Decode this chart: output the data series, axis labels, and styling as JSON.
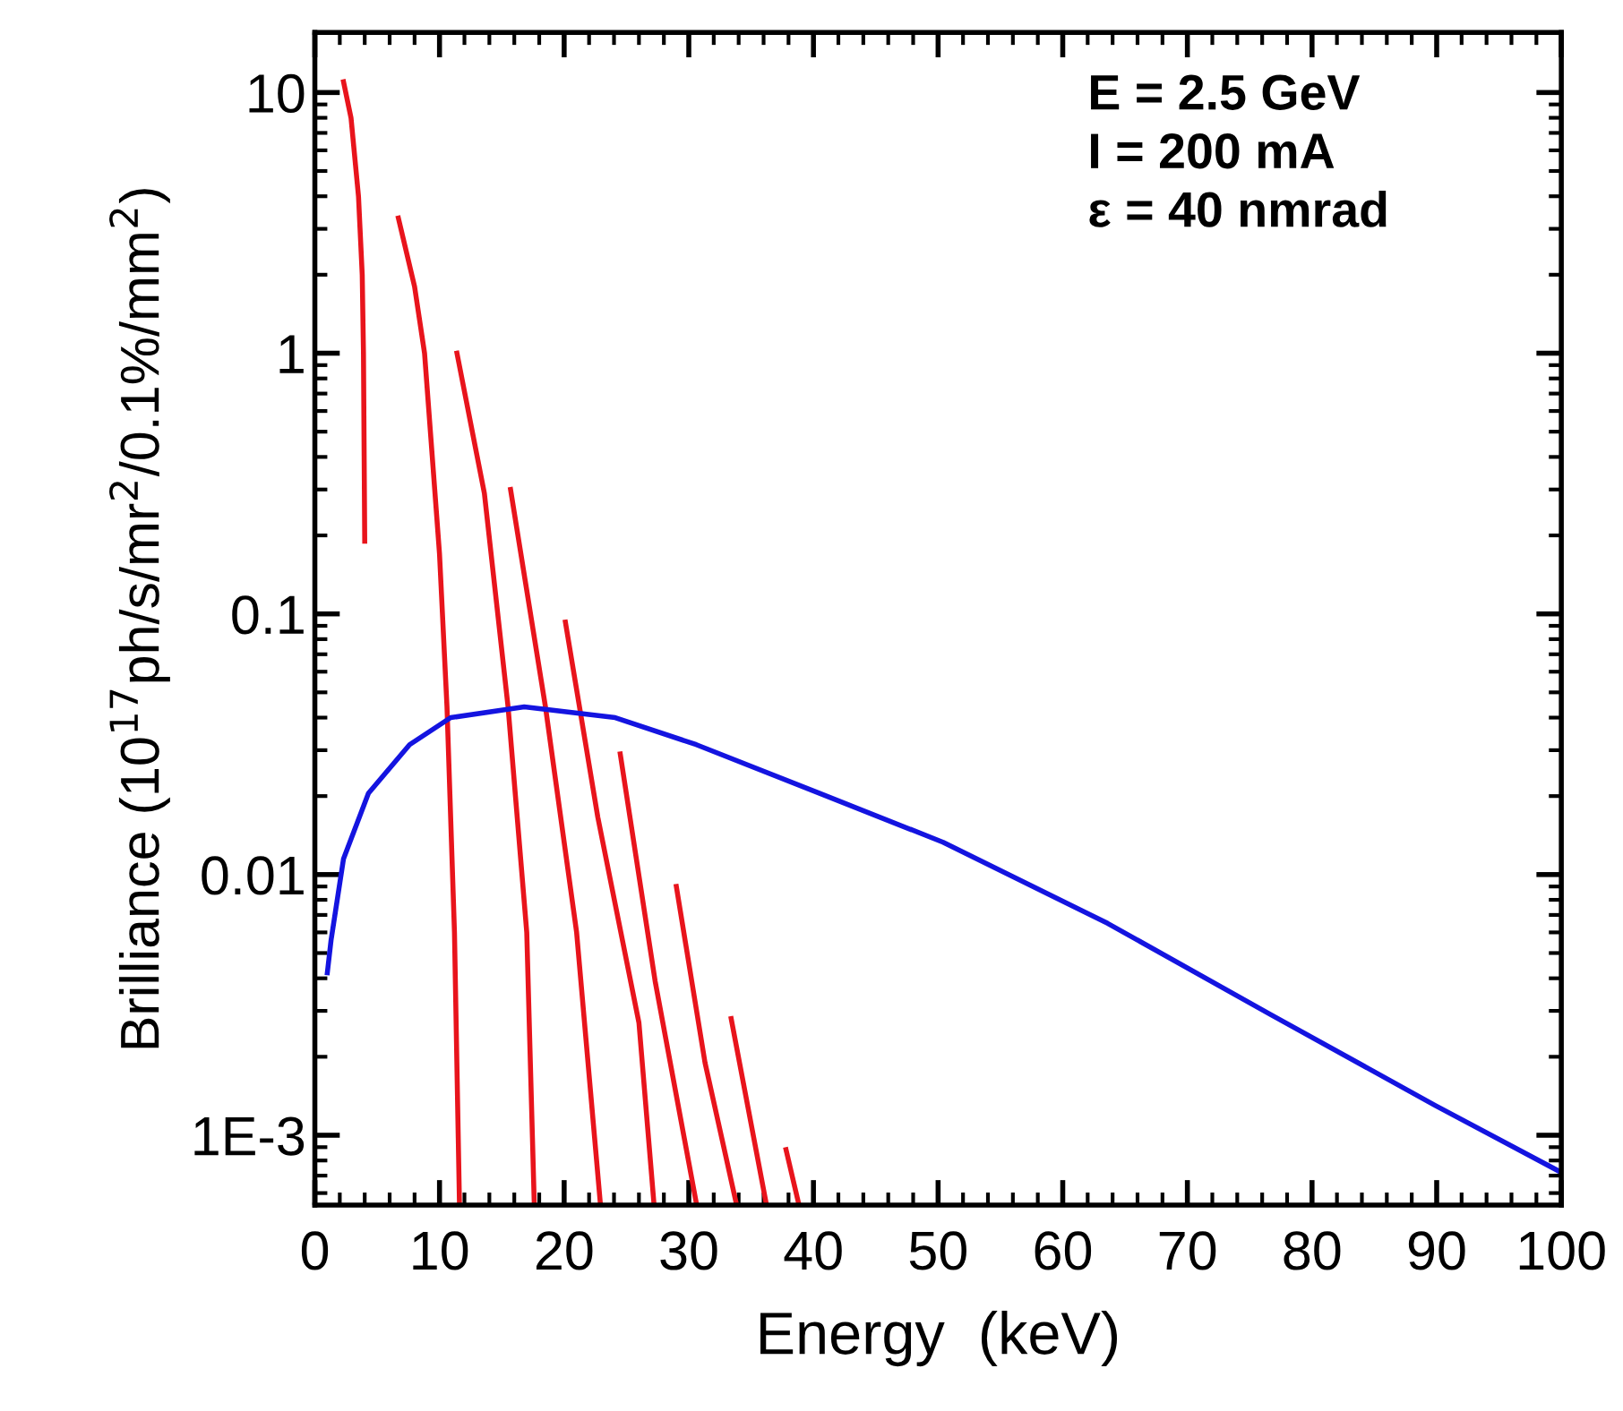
{
  "chart_data": {
    "type": "line",
    "xlabel": "Energy  (keV)",
    "ylabel": "Brilliance (10$^{17}$ph/s/mr$^{2}$/0.1%/mm$^{2}$)",
    "log": "y",
    "xlim": [
      0,
      100
    ],
    "ylim": [
      0.00054,
      17
    ],
    "xticks": [
      0,
      10,
      20,
      30,
      40,
      50,
      60,
      70,
      80,
      90,
      100
    ],
    "yticks": [
      {
        "value": 0.001,
        "label": "1E-3"
      },
      0.01,
      0.1,
      1,
      10
    ],
    "grid": false,
    "legend": false,
    "marker": "none",
    "line_style": "solid",
    "annotations": [
      "E = 2.5 GeV",
      "I = 200 mA",
      "ε = 40 nmrad"
    ],
    "series": [
      {
        "color": "#e8141c",
        "x": [
          2.3,
          2.9,
          3.5,
          3.8,
          3.9,
          4.0
        ],
        "values": [
          11,
          8,
          4,
          2,
          1,
          0.19
        ]
      },
      {
        "color": "#e8141c",
        "x": [
          6.7,
          8.0,
          8.8,
          10,
          10.6,
          11.2,
          11.6
        ],
        "values": [
          3.3,
          1.8,
          1.0,
          0.17,
          0.044,
          0.006,
          0.00055
        ]
      },
      {
        "color": "#e8141c",
        "x": [
          11.4,
          13.6,
          15.5,
          17.0,
          17.6
        ],
        "values": [
          1.0,
          0.29,
          0.044,
          0.006,
          0.00055
        ]
      },
      {
        "color": "#e8141c",
        "x": [
          15.7,
          18.5,
          21,
          22.9
        ],
        "values": [
          0.3,
          0.044,
          0.006,
          0.00055
        ]
      },
      {
        "color": "#e8141c",
        "x": [
          20.1,
          22.7,
          26,
          27.2
        ],
        "values": [
          0.093,
          0.0166,
          0.0027,
          0.00055
        ]
      },
      {
        "color": "#e8141c",
        "x": [
          24.5,
          27.3,
          30.6
        ],
        "values": [
          0.029,
          0.0039,
          0.00055
        ]
      },
      {
        "color": "#e8141c",
        "x": [
          29.0,
          31.3,
          33.8
        ],
        "values": [
          0.009,
          0.0019,
          0.00055
        ]
      },
      {
        "color": "#e8141c",
        "x": [
          33.4,
          36.2
        ],
        "values": [
          0.0028,
          0.00055
        ]
      },
      {
        "color": "#e8141c",
        "x": [
          37.8,
          38.8
        ],
        "values": [
          0.00088,
          0.00055
        ]
      },
      {
        "color": "#1414e0",
        "x": [
          1.0,
          1.3,
          2.3,
          4.3,
          7.6,
          10.9,
          16.8,
          24.1,
          30.6,
          40.5,
          50.4,
          63.6,
          76.7,
          89.9,
          100
        ],
        "values": [
          0.0042,
          0.0056,
          0.0115,
          0.0205,
          0.0315,
          0.04,
          0.044,
          0.04,
          0.0315,
          0.0205,
          0.0133,
          0.0065,
          0.0029,
          0.0013,
          0.00072
        ]
      }
    ]
  }
}
